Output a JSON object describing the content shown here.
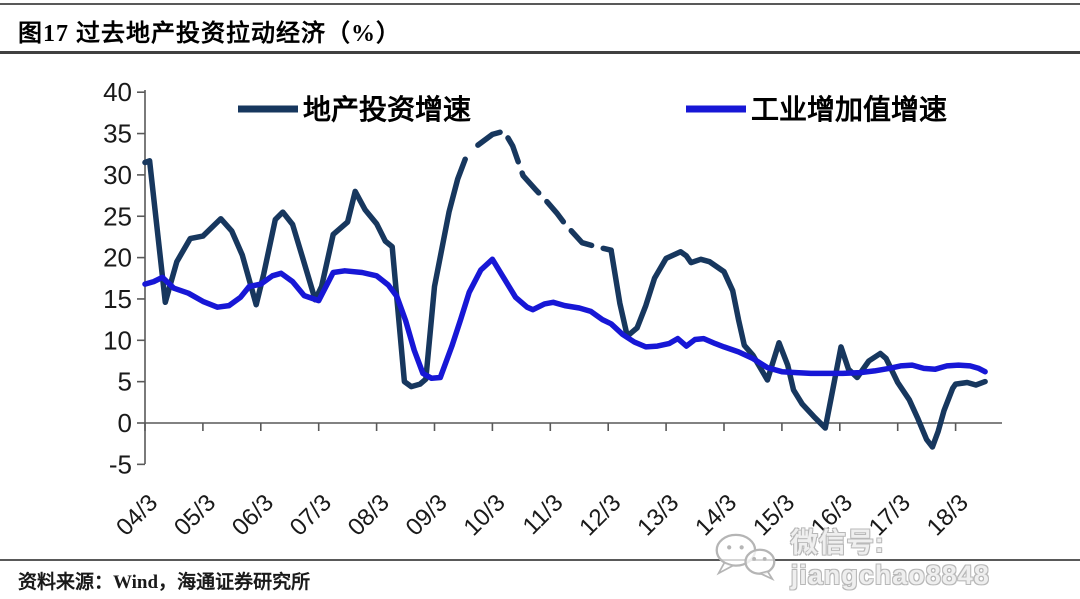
{
  "page": {
    "title": "图17 过去地产投资拉动经济（%）",
    "source": "资料来源：Wind，海通证券研究所",
    "watermark": {
      "icon": "wechat-icon",
      "text": "微信号: jiangchao8848"
    }
  },
  "chart_data": {
    "type": "line",
    "title": "过去地产投资拉动经济（%）",
    "ylabel": "",
    "xlabel": "",
    "ylim": [
      -5,
      40
    ],
    "grid": false,
    "legend_position": "top-inside",
    "y_ticks": [
      40,
      35,
      30,
      25,
      20,
      15,
      10,
      5,
      0,
      -5
    ],
    "x_ticks": [
      {
        "label": "04/3",
        "t": 2004.25
      },
      {
        "label": "05/3",
        "t": 2005.25
      },
      {
        "label": "06/3",
        "t": 2006.25
      },
      {
        "label": "07/3",
        "t": 2007.25
      },
      {
        "label": "08/3",
        "t": 2008.25
      },
      {
        "label": "09/3",
        "t": 2009.25
      },
      {
        "label": "10/3",
        "t": 2010.25
      },
      {
        "label": "11/3",
        "t": 2011.25
      },
      {
        "label": "12/3",
        "t": 2012.25
      },
      {
        "label": "13/3",
        "t": 2013.25
      },
      {
        "label": "14/3",
        "t": 2014.25
      },
      {
        "label": "15/3",
        "t": 2015.25
      },
      {
        "label": "16/3",
        "t": 2016.25
      },
      {
        "label": "17/3",
        "t": 2017.25
      },
      {
        "label": "18/3",
        "t": 2018.25
      }
    ],
    "series": [
      {
        "id": "real-estate-investment-growth",
        "name": "地产投资增速",
        "color": "#17375E",
        "segments": [
          {
            "style": "solid",
            "points": [
              [
                2004.25,
                31.5
              ],
              [
                2004.33,
                31.7
              ],
              [
                2004.6,
                14.6
              ],
              [
                2004.8,
                19.5
              ],
              [
                2005.03,
                22.3
              ],
              [
                2005.25,
                22.6
              ],
              [
                2005.56,
                24.7
              ],
              [
                2005.75,
                23.2
              ],
              [
                2005.93,
                20.3
              ],
              [
                2006.17,
                14.3
              ],
              [
                2006.3,
                18.0
              ],
              [
                2006.5,
                24.6
              ],
              [
                2006.63,
                25.5
              ],
              [
                2006.8,
                24.0
              ],
              [
                2006.98,
                19.8
              ],
              [
                2007.19,
                14.9
              ],
              [
                2007.3,
                16.5
              ],
              [
                2007.5,
                22.8
              ],
              [
                2007.75,
                24.3
              ],
              [
                2007.88,
                28.0
              ],
              [
                2008.05,
                25.8
              ],
              [
                2008.25,
                24.1
              ],
              [
                2008.4,
                22.0
              ],
              [
                2008.52,
                21.3
              ],
              [
                2008.73,
                5.0
              ],
              [
                2008.85,
                4.4
              ],
              [
                2009.0,
                4.7
              ],
              [
                2009.1,
                5.3
              ],
              [
                2009.25,
                16.5
              ],
              [
                2009.5,
                25.5
              ],
              [
                2009.65,
                29.5
              ],
              [
                2009.78,
                31.9
              ]
            ]
          },
          {
            "style": "dashed",
            "points": [
              [
                2010.0,
                33.6
              ],
              [
                2010.25,
                34.9
              ],
              [
                2010.45,
                35.3
              ],
              [
                2010.6,
                33.5
              ],
              [
                2010.78,
                29.9
              ],
              [
                2011.0,
                28.2
              ],
              [
                2011.2,
                26.7
              ],
              [
                2011.36,
                25.4
              ],
              [
                2011.5,
                24.1
              ],
              [
                2011.8,
                21.8
              ],
              [
                2012.05,
                21.3
              ],
              [
                2012.3,
                20.9
              ]
            ]
          },
          {
            "style": "solid",
            "points": [
              [
                2012.3,
                20.9
              ],
              [
                2012.45,
                14.5
              ],
              [
                2012.58,
                10.5
              ],
              [
                2012.75,
                11.5
              ],
              [
                2012.9,
                14.2
              ],
              [
                2013.05,
                17.5
              ],
              [
                2013.25,
                19.9
              ],
              [
                2013.5,
                20.7
              ],
              [
                2013.6,
                20.2
              ],
              [
                2013.68,
                19.4
              ],
              [
                2013.85,
                19.8
              ],
              [
                2014.0,
                19.5
              ],
              [
                2014.25,
                18.3
              ],
              [
                2014.4,
                16.0
              ],
              [
                2014.5,
                12.5
              ],
              [
                2014.6,
                9.4
              ],
              [
                2014.75,
                8.2
              ],
              [
                2015.0,
                5.2
              ],
              [
                2015.2,
                9.7
              ],
              [
                2015.35,
                7.0
              ],
              [
                2015.45,
                4.0
              ],
              [
                2015.6,
                2.3
              ],
              [
                2015.8,
                0.8
              ],
              [
                2016.0,
                -0.6
              ],
              [
                2016.1,
                3.0
              ],
              [
                2016.27,
                9.2
              ],
              [
                2016.4,
                6.5
              ],
              [
                2016.55,
                5.5
              ],
              [
                2016.75,
                7.5
              ],
              [
                2016.95,
                8.4
              ],
              [
                2017.05,
                7.8
              ],
              [
                2017.25,
                4.9
              ],
              [
                2017.45,
                2.8
              ],
              [
                2017.6,
                0.5
              ],
              [
                2017.75,
                -2.0
              ],
              [
                2017.85,
                -2.9
              ],
              [
                2017.95,
                -1.0
              ],
              [
                2018.05,
                1.5
              ],
              [
                2018.2,
                4.2
              ],
              [
                2018.25,
                4.7
              ],
              [
                2018.45,
                4.9
              ],
              [
                2018.6,
                4.6
              ],
              [
                2018.76,
                5.0
              ]
            ]
          }
        ]
      },
      {
        "id": "industrial-value-added-growth",
        "name": "工业增加值增速",
        "color": "#1717D6",
        "segments": [
          {
            "style": "solid",
            "points": [
              [
                2004.25,
                16.8
              ],
              [
                2004.4,
                17.1
              ],
              [
                2004.55,
                17.6
              ],
              [
                2004.75,
                16.3
              ],
              [
                2005.0,
                15.7
              ],
              [
                2005.25,
                14.7
              ],
              [
                2005.5,
                14.0
              ],
              [
                2005.7,
                14.2
              ],
              [
                2005.9,
                15.2
              ],
              [
                2006.05,
                16.5
              ],
              [
                2006.25,
                16.8
              ],
              [
                2006.45,
                17.8
              ],
              [
                2006.6,
                18.1
              ],
              [
                2006.8,
                17.1
              ],
              [
                2007.0,
                15.4
              ],
              [
                2007.25,
                14.8
              ],
              [
                2007.5,
                18.2
              ],
              [
                2007.7,
                18.4
              ],
              [
                2008.0,
                18.2
              ],
              [
                2008.25,
                17.8
              ],
              [
                2008.45,
                16.7
              ],
              [
                2008.6,
                15.3
              ],
              [
                2008.75,
                12.4
              ],
              [
                2008.9,
                8.8
              ],
              [
                2009.05,
                6.0
              ],
              [
                2009.2,
                5.4
              ],
              [
                2009.35,
                5.5
              ],
              [
                2009.55,
                9.3
              ],
              [
                2009.7,
                12.5
              ],
              [
                2009.85,
                15.8
              ],
              [
                2010.05,
                18.5
              ],
              [
                2010.25,
                19.8
              ],
              [
                2010.45,
                17.5
              ],
              [
                2010.65,
                15.2
              ],
              [
                2010.85,
                14.0
              ],
              [
                2010.95,
                13.7
              ],
              [
                2011.15,
                14.4
              ],
              [
                2011.3,
                14.6
              ],
              [
                2011.5,
                14.2
              ],
              [
                2011.75,
                13.9
              ],
              [
                2011.95,
                13.5
              ],
              [
                2012.15,
                12.5
              ],
              [
                2012.3,
                12.0
              ],
              [
                2012.5,
                10.7
              ],
              [
                2012.7,
                9.8
              ],
              [
                2012.9,
                9.2
              ],
              [
                2013.1,
                9.3
              ],
              [
                2013.3,
                9.6
              ],
              [
                2013.45,
                10.2
              ],
              [
                2013.6,
                9.3
              ],
              [
                2013.75,
                10.1
              ],
              [
                2013.9,
                10.2
              ],
              [
                2014.1,
                9.6
              ],
              [
                2014.25,
                9.2
              ],
              [
                2014.5,
                8.6
              ],
              [
                2014.75,
                7.8
              ],
              [
                2015.0,
                6.7
              ],
              [
                2015.25,
                6.2
              ],
              [
                2015.5,
                6.1
              ],
              [
                2015.75,
                6.0
              ],
              [
                2016.0,
                6.0
              ],
              [
                2016.3,
                6.0
              ],
              [
                2016.6,
                6.1
              ],
              [
                2016.85,
                6.3
              ],
              [
                2017.1,
                6.6
              ],
              [
                2017.3,
                6.9
              ],
              [
                2017.5,
                7.0
              ],
              [
                2017.7,
                6.6
              ],
              [
                2017.9,
                6.5
              ],
              [
                2018.1,
                6.9
              ],
              [
                2018.3,
                7.0
              ],
              [
                2018.5,
                6.9
              ],
              [
                2018.65,
                6.6
              ],
              [
                2018.76,
                6.2
              ]
            ]
          }
        ]
      }
    ],
    "legend": [
      "地产投资增速",
      "工业增加值增速"
    ]
  },
  "colors": {
    "axis": "#595959",
    "tick_label": "#1a1a1a",
    "rule": "#595959",
    "navy": "#17375E",
    "blue": "#1717D6"
  }
}
